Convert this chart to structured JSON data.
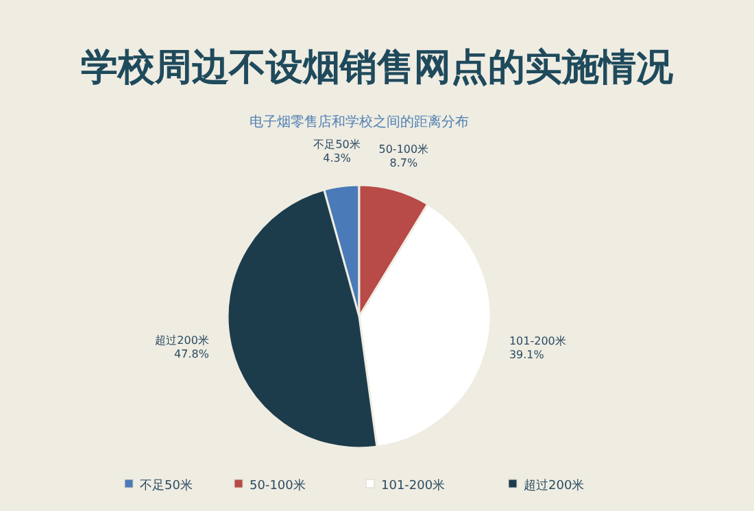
{
  "chart_data": {
    "type": "pie",
    "title": "学校周边不设烟销售网点的实施情况",
    "subtitle": "电子烟零售店和学校之间的距离分布",
    "categories": [
      "不足50米",
      "50-100米",
      "101-200米",
      "超过200米"
    ],
    "values": [
      4.3,
      8.7,
      39.1,
      47.8
    ],
    "colors": [
      "#4a7ab8",
      "#b84a47",
      "#ffffff",
      "#1c3c4c"
    ],
    "value_labels": [
      "4.3%",
      "8.7%",
      "39.1%",
      "47.8%"
    ],
    "legend": "bottom"
  }
}
